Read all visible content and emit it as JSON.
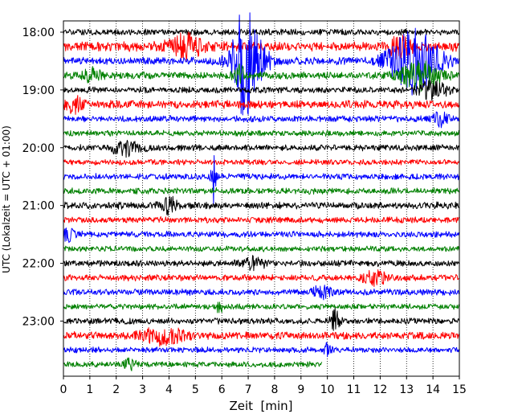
{
  "chart_data": {
    "type": "line",
    "subtype": "helicorder",
    "xlabel": "Zeit  [min]",
    "ylabel": "UTC (Lokalzeit = UTC + 01:00)",
    "xlim": [
      0,
      15
    ],
    "x_ticks": [
      0,
      1,
      2,
      3,
      4,
      5,
      6,
      7,
      8,
      9,
      10,
      11,
      12,
      13,
      14,
      15
    ],
    "x_tick_labels": [
      "0",
      "1",
      "2",
      "3",
      "4",
      "5",
      "6",
      "7",
      "8",
      "9",
      "10",
      "11",
      "12",
      "13",
      "14",
      "15"
    ],
    "y_tick_labels": [
      "18:00",
      "19:00",
      "20:00",
      "21:00",
      "22:00",
      "23:00"
    ],
    "y_tick_hours": [
      0,
      1,
      2,
      3,
      4,
      5
    ],
    "grid": {
      "x": true,
      "style": "dotted"
    },
    "line_minutes": 15,
    "color_cycle": [
      "#000000",
      "#ff0000",
      "#0000ff",
      "#008000"
    ],
    "traces": [
      {
        "start": "18:00",
        "end_minute": 15,
        "noise": 1.0,
        "events": []
      },
      {
        "start": "18:15",
        "end_minute": 15,
        "noise": 1.5,
        "events": [
          {
            "minute": 4.6,
            "amp": 3.5,
            "width": 0.9
          },
          {
            "minute": 12.8,
            "amp": 3.0,
            "width": 0.6
          }
        ]
      },
      {
        "start": "18:30",
        "end_minute": 15,
        "noise": 1.2,
        "events": [
          {
            "minute": 6.8,
            "amp": 8,
            "width": 0.4
          },
          {
            "minute": 7.0,
            "amp": 10,
            "width": 0.9
          },
          {
            "minute": 13.3,
            "amp": 9,
            "width": 1.3
          }
        ]
      },
      {
        "start": "18:45",
        "end_minute": 15,
        "noise": 1.2,
        "events": [
          {
            "minute": 1.0,
            "amp": 2.2,
            "width": 0.5
          },
          {
            "minute": 6.6,
            "amp": 3.5,
            "width": 0.3
          },
          {
            "minute": 13.5,
            "amp": 4,
            "width": 1.0
          }
        ]
      },
      {
        "start": "19:00",
        "end_minute": 15,
        "noise": 1.0,
        "events": [
          {
            "minute": 14.0,
            "amp": 2.5,
            "width": 0.8
          }
        ]
      },
      {
        "start": "19:15",
        "end_minute": 15,
        "noise": 1.3,
        "events": [
          {
            "minute": 0.4,
            "amp": 2.0,
            "width": 0.5
          }
        ]
      },
      {
        "start": "19:30",
        "end_minute": 15,
        "noise": 1.0,
        "events": [
          {
            "minute": 14.3,
            "amp": 2.0,
            "width": 0.4
          }
        ]
      },
      {
        "start": "19:45",
        "end_minute": 15,
        "noise": 0.9,
        "events": []
      },
      {
        "start": "20:00",
        "end_minute": 15,
        "noise": 1.0,
        "events": [
          {
            "minute": 2.4,
            "amp": 2.0,
            "width": 0.8
          }
        ]
      },
      {
        "start": "20:15",
        "end_minute": 15,
        "noise": 0.9,
        "events": []
      },
      {
        "start": "20:30",
        "end_minute": 15,
        "noise": 1.0,
        "events": [
          {
            "minute": 5.7,
            "amp": 8,
            "width": 0.12
          }
        ]
      },
      {
        "start": "20:45",
        "end_minute": 15,
        "noise": 1.0,
        "events": []
      },
      {
        "start": "21:00",
        "end_minute": 15,
        "noise": 1.1,
        "events": [
          {
            "minute": 4.0,
            "amp": 2.2,
            "width": 0.4
          }
        ]
      },
      {
        "start": "21:15",
        "end_minute": 15,
        "noise": 1.0,
        "events": []
      },
      {
        "start": "21:30",
        "end_minute": 15,
        "noise": 1.0,
        "events": [
          {
            "minute": 0.2,
            "amp": 1.8,
            "width": 0.3
          }
        ]
      },
      {
        "start": "21:45",
        "end_minute": 15,
        "noise": 0.9,
        "events": []
      },
      {
        "start": "22:00",
        "end_minute": 15,
        "noise": 1.0,
        "events": [
          {
            "minute": 7.2,
            "amp": 1.8,
            "width": 0.6
          }
        ]
      },
      {
        "start": "22:15",
        "end_minute": 15,
        "noise": 1.0,
        "events": [
          {
            "minute": 11.8,
            "amp": 2.0,
            "width": 0.6
          }
        ]
      },
      {
        "start": "22:30",
        "end_minute": 15,
        "noise": 1.0,
        "events": [
          {
            "minute": 9.8,
            "amp": 1.8,
            "width": 0.5
          }
        ]
      },
      {
        "start": "22:45",
        "end_minute": 15,
        "noise": 0.9,
        "events": [
          {
            "minute": 5.9,
            "amp": 1.8,
            "width": 0.2
          }
        ]
      },
      {
        "start": "23:00",
        "end_minute": 15,
        "noise": 1.0,
        "events": [
          {
            "minute": 10.3,
            "amp": 3.0,
            "width": 0.25
          }
        ]
      },
      {
        "start": "23:15",
        "end_minute": 15,
        "noise": 1.2,
        "events": [
          {
            "minute": 3.8,
            "amp": 2.2,
            "width": 1.2
          }
        ]
      },
      {
        "start": "23:30",
        "end_minute": 15,
        "noise": 0.9,
        "events": [
          {
            "minute": 10.0,
            "amp": 1.6,
            "width": 0.2
          }
        ]
      },
      {
        "start": "23:45",
        "end_minute": 9.8,
        "noise": 0.9,
        "events": [
          {
            "minute": 2.5,
            "amp": 1.8,
            "width": 0.3
          }
        ]
      }
    ]
  }
}
